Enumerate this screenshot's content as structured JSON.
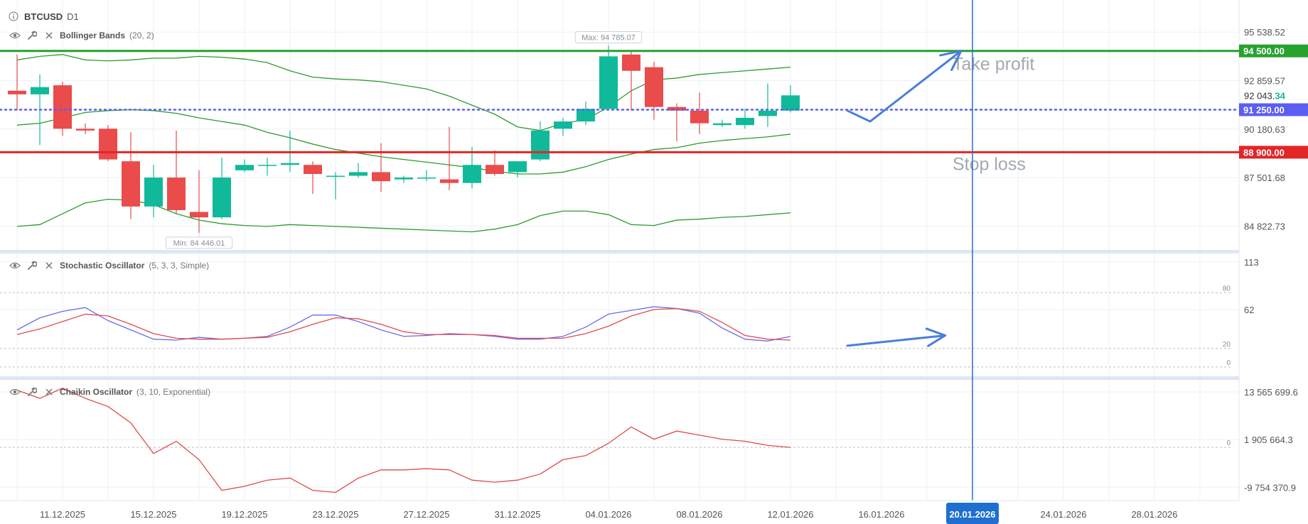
{
  "header": {
    "symbol": "BTCUSD",
    "timeframe": "D1"
  },
  "indicators": {
    "bollinger": {
      "name": "Bollinger Bands",
      "params": "(20, 2)"
    },
    "stochastic": {
      "name": "Stochastic Oscillator",
      "params": "(5, 3, 3, Simple)"
    },
    "chaikin": {
      "name": "Chaikin Oscillator",
      "params": "(3, 10, Exponential)"
    }
  },
  "icons": [
    "info-icon",
    "eye-icon",
    "wrench-icon",
    "close-icon"
  ],
  "colors": {
    "up": "#10b99a",
    "down": "#ea4b4b",
    "tp": "#27a22f",
    "sl": "#e32626",
    "entry": "#5b5ef2",
    "arrow": "#4a7fd9"
  },
  "chart_data": [
    {
      "type": "candlestick",
      "ylim": [
        83500,
        97000
      ],
      "y_ticks": [
        "95 538.52",
        "92 859.57",
        "90 180.63",
        "87 501.68",
        "84 822.73"
      ],
      "y_tick_values": [
        95538.52,
        92859.57,
        90180.63,
        87501.68,
        84822.73
      ],
      "x_labels": [
        "11.12.2025",
        "15.12.2025",
        "19.12.2025",
        "23.12.2025",
        "27.12.2025",
        "31.12.2025",
        "04.01.2026",
        "08.01.2026",
        "12.01.2026",
        "16.01.2026",
        "20.01.2026",
        "24.01.2026",
        "28.01.2026"
      ],
      "x_label_values": [
        2,
        6,
        10,
        14,
        18,
        22,
        26,
        30,
        34,
        38,
        42,
        46,
        50
      ],
      "highlighted_x_label": "20.01.2026",
      "candles": [
        {
          "o": 92300,
          "h": 94300,
          "l": 91200,
          "c": 92100
        },
        {
          "o": 92100,
          "h": 93200,
          "l": 89300,
          "c": 92500
        },
        {
          "o": 92600,
          "h": 92800,
          "l": 89800,
          "c": 90200
        },
        {
          "o": 90200,
          "h": 90500,
          "l": 89900,
          "c": 90100
        },
        {
          "o": 90200,
          "h": 90400,
          "l": 88400,
          "c": 88500
        },
        {
          "o": 88400,
          "h": 90000,
          "l": 85200,
          "c": 85900
        },
        {
          "o": 85900,
          "h": 88200,
          "l": 85300,
          "c": 87500
        },
        {
          "o": 87500,
          "h": 90100,
          "l": 85500,
          "c": 85700
        },
        {
          "o": 85600,
          "h": 87900,
          "l": 84446.01,
          "c": 85300
        },
        {
          "o": 85300,
          "h": 88600,
          "l": 85200,
          "c": 87500
        },
        {
          "o": 87900,
          "h": 88500,
          "l": 87800,
          "c": 88200
        },
        {
          "o": 88200,
          "h": 88600,
          "l": 87600,
          "c": 88200
        },
        {
          "o": 88200,
          "h": 90100,
          "l": 87800,
          "c": 88300
        },
        {
          "o": 88200,
          "h": 88400,
          "l": 86600,
          "c": 87700
        },
        {
          "o": 87600,
          "h": 87800,
          "l": 86300,
          "c": 87600
        },
        {
          "o": 87600,
          "h": 88300,
          "l": 87500,
          "c": 87800
        },
        {
          "o": 87800,
          "h": 89400,
          "l": 86700,
          "c": 87300
        },
        {
          "o": 87400,
          "h": 87600,
          "l": 87200,
          "c": 87500
        },
        {
          "o": 87500,
          "h": 87900,
          "l": 87300,
          "c": 87500
        },
        {
          "o": 87400,
          "h": 90300,
          "l": 86800,
          "c": 87200
        },
        {
          "o": 87200,
          "h": 89200,
          "l": 86900,
          "c": 88200
        },
        {
          "o": 88200,
          "h": 89000,
          "l": 87600,
          "c": 87700
        },
        {
          "o": 87800,
          "h": 88400,
          "l": 87500,
          "c": 88400
        },
        {
          "o": 88500,
          "h": 90600,
          "l": 88400,
          "c": 90100
        },
        {
          "o": 90200,
          "h": 90800,
          "l": 89800,
          "c": 90600
        },
        {
          "o": 90600,
          "h": 91700,
          "l": 90400,
          "c": 91300
        },
        {
          "o": 91300,
          "h": 94785.07,
          "l": 91200,
          "c": 94200
        },
        {
          "o": 94300,
          "h": 94500,
          "l": 91200,
          "c": 93400
        },
        {
          "o": 93600,
          "h": 93900,
          "l": 90700,
          "c": 91400
        },
        {
          "o": 91400,
          "h": 91600,
          "l": 89500,
          "c": 91200
        },
        {
          "o": 91200,
          "h": 92200,
          "l": 89900,
          "c": 90500
        },
        {
          "o": 90400,
          "h": 90700,
          "l": 90300,
          "c": 90500
        },
        {
          "o": 90400,
          "h": 91300,
          "l": 90200,
          "c": 90800
        },
        {
          "o": 90900,
          "h": 92700,
          "l": 90300,
          "c": 91200
        },
        {
          "o": 91200,
          "h": 92600,
          "l": 91100,
          "c": 92043.34
        }
      ],
      "bollinger": {
        "upper": [
          94000,
          94200,
          94300,
          94000,
          93950,
          94000,
          94100,
          94100,
          94200,
          94150,
          94050,
          93850,
          93400,
          93050,
          92950,
          92900,
          92800,
          92600,
          92400,
          92000,
          91500,
          91000,
          90300,
          90100,
          90500,
          90700,
          91400,
          92300,
          92900,
          93000,
          93200,
          93300,
          93400,
          93500,
          93600
        ],
        "middle": [
          90400,
          90500,
          90800,
          91100,
          91200,
          91250,
          91200,
          91050,
          90800,
          90600,
          90400,
          90000,
          89700,
          89350,
          89050,
          88850,
          88650,
          88500,
          88350,
          88200,
          88050,
          87850,
          87700,
          87700,
          87800,
          88100,
          88500,
          88800,
          89050,
          89150,
          89400,
          89550,
          89650,
          89750,
          89900
        ],
        "lower": [
          84800,
          84900,
          85500,
          86100,
          86300,
          86250,
          86000,
          85500,
          85150,
          84950,
          84850,
          84800,
          84900,
          84850,
          84800,
          84750,
          84700,
          84650,
          84600,
          84550,
          84500,
          84650,
          84900,
          85400,
          85650,
          85650,
          85450,
          84900,
          84850,
          85150,
          85200,
          85300,
          85350,
          85450,
          85550
        ]
      },
      "price_lines": [
        {
          "name": "Take profit",
          "value": 94500,
          "label": "94 500.00",
          "color": "#27a22f",
          "style": "solid"
        },
        {
          "name": "Stop loss",
          "value": 88900,
          "label": "88 900.00",
          "color": "#e32626",
          "style": "solid"
        },
        {
          "value": 91250,
          "label": "91 250.00",
          "color": "#5b5ef2",
          "style": "dotted"
        }
      ],
      "current_price": {
        "main": "92 043.",
        "decimals": "34",
        "value": 92043.34
      },
      "annotations": {
        "max": "Max: 94 785.07",
        "min": "Min: 84 446.01",
        "take_profit": "Take profit",
        "stop_loss": "Stop loss"
      },
      "arrow": {
        "points": [
          [
            36.5,
            91200
          ],
          [
            37.5,
            90600
          ],
          [
            41.5,
            94500
          ]
        ]
      },
      "vline_x": 42
    },
    {
      "type": "line",
      "ylim": [
        -10,
        120
      ],
      "y_ticks": [
        "113",
        "62"
      ],
      "y_tick_values": [
        113,
        62
      ],
      "levels": [
        80,
        20,
        0
      ],
      "level_labels": [
        "80",
        "20",
        "0"
      ],
      "series": [
        {
          "color": "#6a6de8",
          "values": [
            40,
            53,
            60,
            64,
            50,
            40,
            30,
            29,
            32,
            30,
            31,
            33,
            43,
            56,
            56,
            49,
            40,
            33,
            34,
            36,
            35,
            33,
            30,
            30,
            33,
            43,
            57,
            61,
            65,
            63,
            58,
            42,
            30,
            28,
            33
          ]
        },
        {
          "color": "#e04b4b",
          "values": [
            35,
            41,
            49,
            57,
            55,
            46,
            36,
            31,
            30,
            30,
            31,
            32,
            38,
            46,
            53,
            52,
            46,
            38,
            35,
            35,
            35,
            34,
            31,
            31,
            31,
            36,
            44,
            55,
            62,
            63,
            60,
            48,
            34,
            30,
            29
          ]
        }
      ],
      "arrow": {
        "points": [
          [
            36.5,
            23
          ],
          [
            40.8,
            34
          ]
        ]
      }
    },
    {
      "type": "line",
      "ylim": [
        -13000000,
        16000000
      ],
      "y_ticks": [
        "13 565 699.6",
        "1 905 664.3",
        "-9 754 370.9"
      ],
      "y_tick_values": [
        13565699.6,
        1905664.3,
        -9754370.9
      ],
      "levels": [
        0
      ],
      "level_labels": [
        "0"
      ],
      "series": [
        {
          "color": "#e04b4b",
          "values": [
            14000000,
            12000000,
            14500000,
            12000000,
            10000000,
            6000000,
            -1500000,
            1500000,
            -3000000,
            -10500000,
            -9500000,
            -8000000,
            -7500000,
            -10500000,
            -11000000,
            -7500000,
            -5500000,
            -5500000,
            -5200000,
            -5500000,
            -8000000,
            -8500000,
            -8000000,
            -6500000,
            -3000000,
            -2000000,
            1000000,
            5000000,
            2000000,
            4000000,
            3000000,
            2000000,
            1500000,
            500000,
            0
          ]
        }
      ]
    }
  ]
}
